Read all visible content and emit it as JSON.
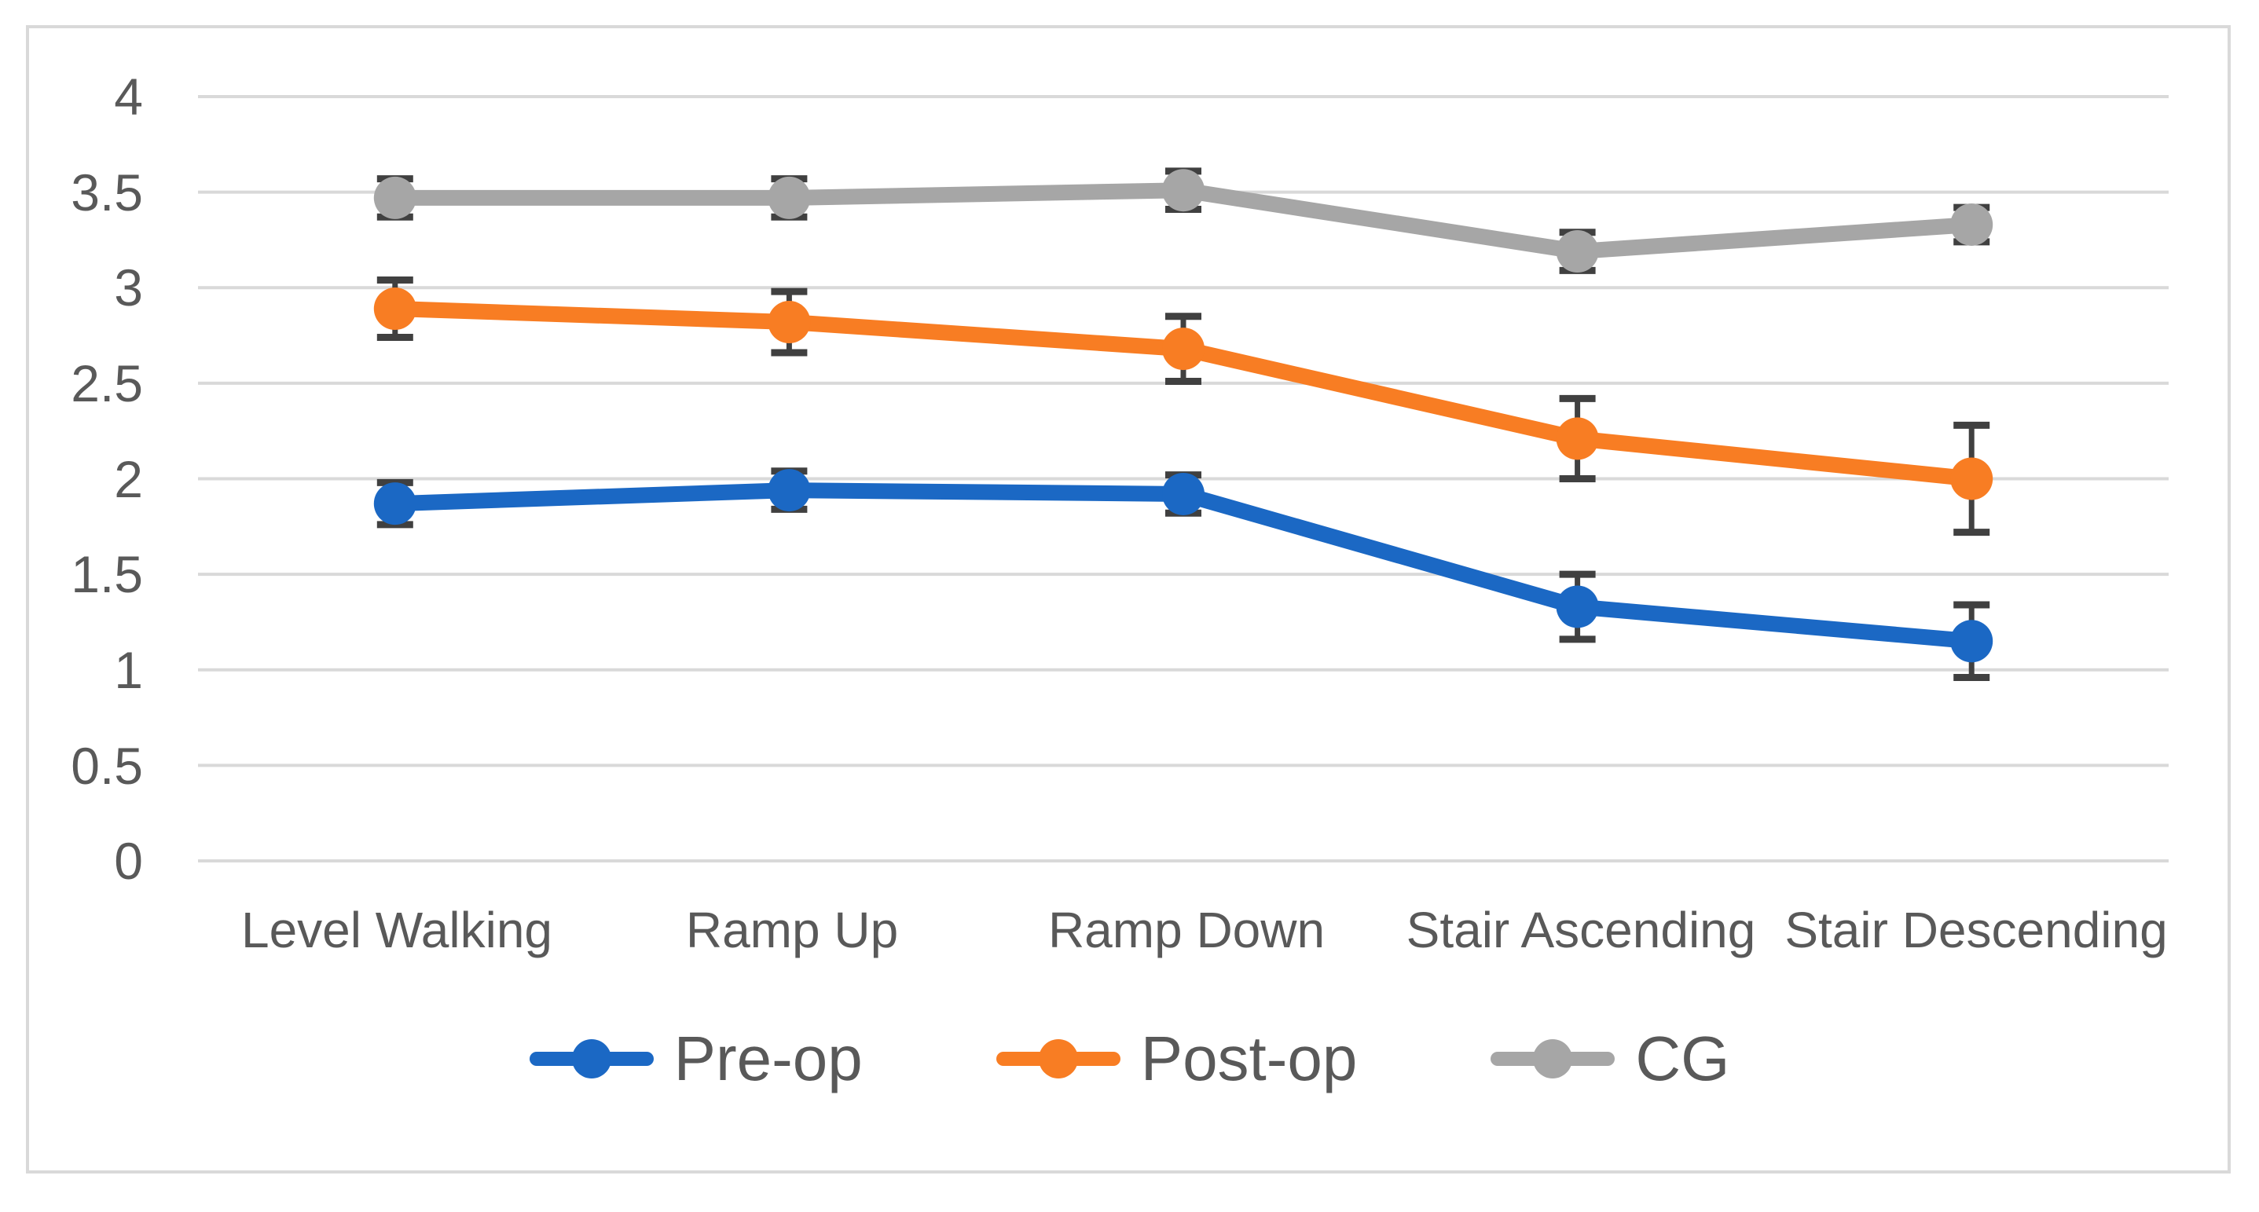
{
  "chart_data": {
    "type": "line",
    "categories": [
      "Level Walking",
      "Ramp Up",
      "Ramp Down",
      "Stair Ascending",
      "Stair Descending"
    ],
    "series": [
      {
        "name": "Pre-op",
        "color": "#1B68C4",
        "values": [
          1.87,
          1.94,
          1.92,
          1.33,
          1.15
        ],
        "errors": [
          0.11,
          0.1,
          0.1,
          0.17,
          0.19
        ]
      },
      {
        "name": "Post-op",
        "color": "#F87D23",
        "values": [
          2.89,
          2.82,
          2.68,
          2.21,
          2.0
        ],
        "errors": [
          0.15,
          0.16,
          0.17,
          0.21,
          0.28
        ]
      },
      {
        "name": "CG",
        "color": "#A6A6A6",
        "values": [
          3.47,
          3.47,
          3.51,
          3.19,
          3.33
        ],
        "errors": [
          0.1,
          0.1,
          0.1,
          0.1,
          0.09
        ]
      }
    ],
    "yticks": [
      "4",
      "3.5",
      "3",
      "2.5",
      "2",
      "1.5",
      "1",
      "0.5",
      "0"
    ],
    "ytick_values": [
      4,
      3.5,
      3,
      2.5,
      2,
      1.5,
      1,
      0.5,
      0
    ],
    "ylim": [
      0,
      4
    ],
    "title": "",
    "xlabel": "",
    "ylabel": "",
    "grid": true,
    "legend_position": "bottom",
    "colors": {
      "gridline": "#D9D9D9",
      "frame_border": "#D9D9D9",
      "error_bar": "#404040",
      "text": "#595959",
      "background": "#FFFFFF"
    }
  }
}
